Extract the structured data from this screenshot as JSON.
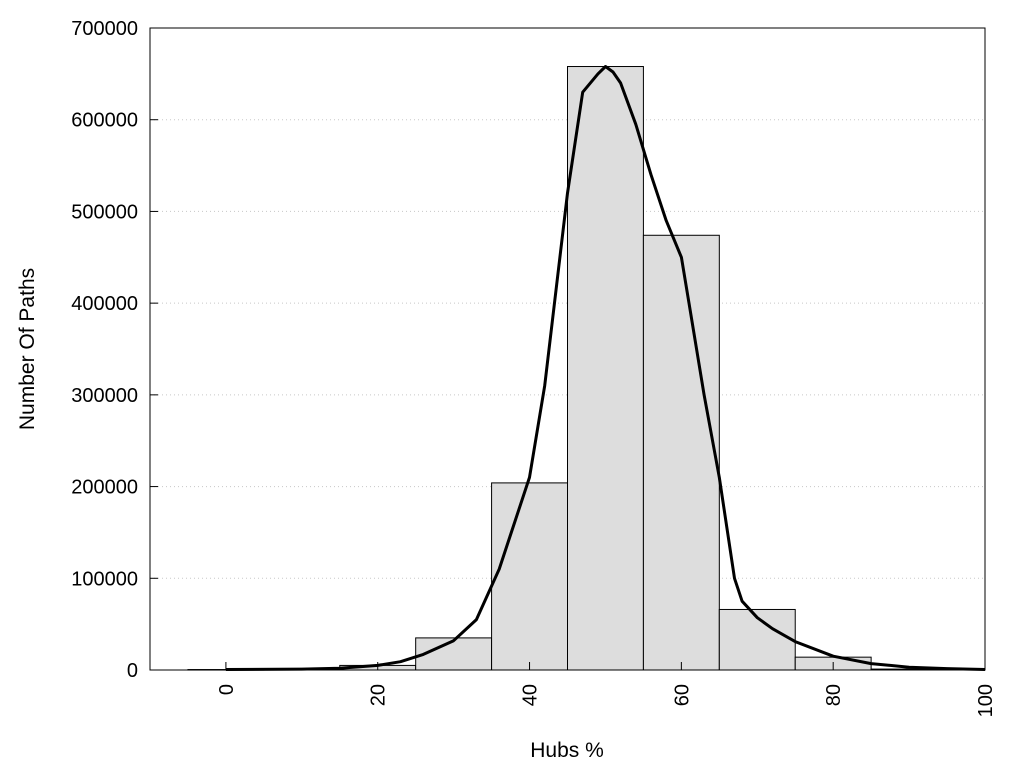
{
  "chart_data": {
    "type": "bar",
    "title": "",
    "xlabel": "Hubs %",
    "ylabel": "Number Of Paths",
    "xlim": [
      -10,
      100
    ],
    "ylim": [
      0,
      700000
    ],
    "xticks": [
      "0",
      "20",
      "40",
      "60",
      "80",
      "100"
    ],
    "yticks": [
      "0",
      "100000",
      "200000",
      "300000",
      "400000",
      "500000",
      "600000",
      "700000"
    ],
    "grid": "horizontal dotted",
    "legend": "none",
    "bar_color": "#dddddd",
    "line_color": "#000000",
    "bins": [
      {
        "x0": -5,
        "x1": 5,
        "value": 500
      },
      {
        "x0": 5,
        "x1": 15,
        "value": 1000
      },
      {
        "x0": 15,
        "x1": 25,
        "value": 5000
      },
      {
        "x0": 25,
        "x1": 35,
        "value": 35000
      },
      {
        "x0": 35,
        "x1": 45,
        "value": 204000
      },
      {
        "x0": 45,
        "x1": 55,
        "value": 658000
      },
      {
        "x0": 55,
        "x1": 65,
        "value": 474000
      },
      {
        "x0": 65,
        "x1": 75,
        "value": 66000
      },
      {
        "x0": 75,
        "x1": 85,
        "value": 14000
      },
      {
        "x0": 85,
        "x1": 95,
        "value": 1000
      }
    ],
    "curve": {
      "x": [
        0,
        10,
        15,
        20,
        23,
        26,
        30,
        33,
        36,
        40,
        42,
        43,
        45,
        47,
        49,
        50,
        51,
        52,
        54,
        56,
        58,
        60,
        61,
        63,
        65,
        67,
        68,
        70,
        72,
        75,
        80,
        85,
        90,
        95,
        100
      ],
      "y": [
        500,
        1000,
        2000,
        5000,
        9000,
        17000,
        32000,
        55000,
        110000,
        210000,
        310000,
        380000,
        520000,
        630000,
        650000,
        658000,
        652000,
        640000,
        595000,
        540000,
        490000,
        450000,
        400000,
        300000,
        210000,
        100000,
        75000,
        57000,
        45000,
        31000,
        15000,
        7000,
        3000,
        1500,
        500
      ]
    }
  }
}
